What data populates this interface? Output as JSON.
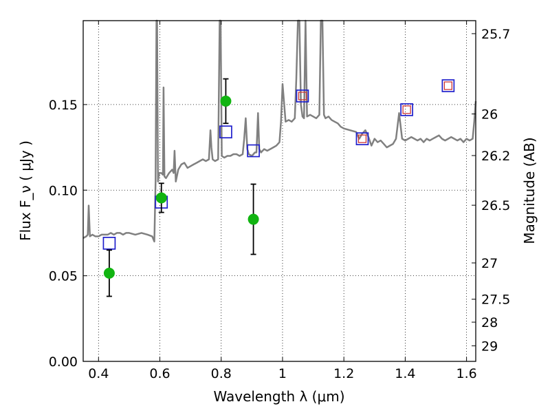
{
  "chart_data": {
    "type": "scatter",
    "xlabel": "Wavelength  λ (μm)",
    "ylabel": "Flux  F_ν  ( μJy )",
    "y2label": "Magnitude (AB)",
    "xlim": [
      0.35,
      1.63
    ],
    "ylim": [
      0.0,
      0.199
    ],
    "grid": true,
    "x_ticks": [
      {
        "value": 0.4,
        "label": "0.4"
      },
      {
        "value": 0.6,
        "label": "0.6"
      },
      {
        "value": 0.8,
        "label": "0.8"
      },
      {
        "value": 1.0,
        "label": "1"
      },
      {
        "value": 1.2,
        "label": "1.2"
      },
      {
        "value": 1.4,
        "label": "1.4"
      },
      {
        "value": 1.6,
        "label": "1.6"
      }
    ],
    "y_ticks": [
      {
        "value": 0.0,
        "label": "0.00"
      },
      {
        "value": 0.05,
        "label": "0.05"
      },
      {
        "value": 0.1,
        "label": "0.10"
      },
      {
        "value": 0.15,
        "label": "0.15"
      }
    ],
    "y2_ticks": [
      {
        "flux": 0.1914,
        "label": "25.7"
      },
      {
        "flux": 0.1445,
        "label": "26"
      },
      {
        "flux": 0.1202,
        "label": "26.2"
      },
      {
        "flux": 0.0912,
        "label": "26.5"
      },
      {
        "flux": 0.0575,
        "label": "27"
      },
      {
        "flux": 0.0363,
        "label": "27.5"
      },
      {
        "flux": 0.0229,
        "label": "28"
      },
      {
        "flux": 0.0091,
        "label": "29"
      }
    ],
    "series": [
      {
        "kind": "line",
        "color": "#808080",
        "x": [
          0.35,
          0.36,
          0.365,
          0.368,
          0.372,
          0.38,
          0.39,
          0.4,
          0.41,
          0.42,
          0.43,
          0.44,
          0.45,
          0.46,
          0.47,
          0.48,
          0.49,
          0.5,
          0.52,
          0.54,
          0.56,
          0.575,
          0.582,
          0.586,
          0.589,
          0.591,
          0.594,
          0.597,
          0.6,
          0.605,
          0.61,
          0.612,
          0.615,
          0.62,
          0.63,
          0.64,
          0.645,
          0.648,
          0.652,
          0.66,
          0.67,
          0.68,
          0.69,
          0.7,
          0.71,
          0.72,
          0.73,
          0.74,
          0.75,
          0.76,
          0.765,
          0.768,
          0.772,
          0.78,
          0.79,
          0.795,
          0.798,
          0.802,
          0.81,
          0.82,
          0.83,
          0.84,
          0.85,
          0.86,
          0.87,
          0.875,
          0.88,
          0.885,
          0.89,
          0.9,
          0.91,
          0.915,
          0.92,
          0.924,
          0.93,
          0.94,
          0.95,
          0.96,
          0.97,
          0.98,
          0.99,
          0.995,
          1.0,
          1.01,
          1.02,
          1.03,
          1.04,
          1.045,
          1.05,
          1.055,
          1.06,
          1.065,
          1.07,
          1.075,
          1.08,
          1.09,
          1.1,
          1.11,
          1.12,
          1.125,
          1.13,
          1.135,
          1.14,
          1.15,
          1.16,
          1.17,
          1.18,
          1.19,
          1.2,
          1.22,
          1.24,
          1.25,
          1.26,
          1.27,
          1.28,
          1.29,
          1.3,
          1.31,
          1.32,
          1.33,
          1.34,
          1.35,
          1.36,
          1.37,
          1.38,
          1.39,
          1.4,
          1.41,
          1.42,
          1.43,
          1.44,
          1.45,
          1.46,
          1.47,
          1.48,
          1.49,
          1.5,
          1.51,
          1.52,
          1.53,
          1.54,
          1.55,
          1.56,
          1.57,
          1.58,
          1.59,
          1.6,
          1.61,
          1.62,
          1.625,
          1.63
        ],
        "y": [
          0.072,
          0.073,
          0.074,
          0.091,
          0.073,
          0.074,
          0.073,
          0.073,
          0.074,
          0.074,
          0.074,
          0.075,
          0.074,
          0.075,
          0.075,
          0.074,
          0.075,
          0.075,
          0.074,
          0.075,
          0.074,
          0.073,
          0.07,
          0.105,
          0.199,
          0.199,
          0.105,
          0.11,
          0.11,
          0.11,
          0.109,
          0.16,
          0.108,
          0.107,
          0.11,
          0.112,
          0.11,
          0.123,
          0.105,
          0.112,
          0.115,
          0.116,
          0.113,
          0.114,
          0.115,
          0.116,
          0.117,
          0.118,
          0.117,
          0.118,
          0.135,
          0.125,
          0.118,
          0.117,
          0.118,
          0.199,
          0.199,
          0.12,
          0.119,
          0.12,
          0.12,
          0.121,
          0.121,
          0.12,
          0.121,
          0.13,
          0.142,
          0.124,
          0.121,
          0.12,
          0.122,
          0.122,
          0.145,
          0.124,
          0.122,
          0.124,
          0.123,
          0.124,
          0.125,
          0.126,
          0.128,
          0.14,
          0.162,
          0.14,
          0.141,
          0.14,
          0.142,
          0.165,
          0.199,
          0.199,
          0.15,
          0.143,
          0.142,
          0.199,
          0.143,
          0.144,
          0.143,
          0.142,
          0.144,
          0.199,
          0.199,
          0.144,
          0.142,
          0.143,
          0.141,
          0.14,
          0.139,
          0.137,
          0.136,
          0.135,
          0.134,
          0.13,
          0.133,
          0.135,
          0.131,
          0.126,
          0.13,
          0.128,
          0.129,
          0.127,
          0.125,
          0.126,
          0.127,
          0.13,
          0.145,
          0.13,
          0.129,
          0.13,
          0.131,
          0.13,
          0.129,
          0.13,
          0.128,
          0.13,
          0.129,
          0.13,
          0.131,
          0.132,
          0.13,
          0.129,
          0.13,
          0.131,
          0.13,
          0.129,
          0.13,
          0.128,
          0.13,
          0.129,
          0.13,
          0.14,
          0.152
        ],
        "name": ""
      },
      {
        "kind": "square",
        "color": "#1f1fcc",
        "x": [
          0.435,
          0.605,
          0.815,
          0.905,
          1.065,
          1.26,
          1.405,
          1.54
        ],
        "y": [
          0.069,
          0.093,
          0.134,
          0.123,
          0.155,
          0.13,
          0.147,
          0.161
        ],
        "name": ""
      },
      {
        "kind": "square",
        "color": "#cc3333",
        "x": [
          1.065,
          1.26,
          1.405,
          1.54
        ],
        "y": [
          0.155,
          0.13,
          0.147,
          0.161
        ],
        "name": ""
      },
      {
        "kind": "point_errorbar",
        "color": "#11b411",
        "x": [
          0.435,
          0.605,
          0.815,
          0.905
        ],
        "y": [
          0.0515,
          0.0955,
          0.152,
          0.083
        ],
        "y_err": [
          0.0135,
          0.0085,
          0.013,
          0.0205
        ],
        "name": ""
      }
    ]
  }
}
